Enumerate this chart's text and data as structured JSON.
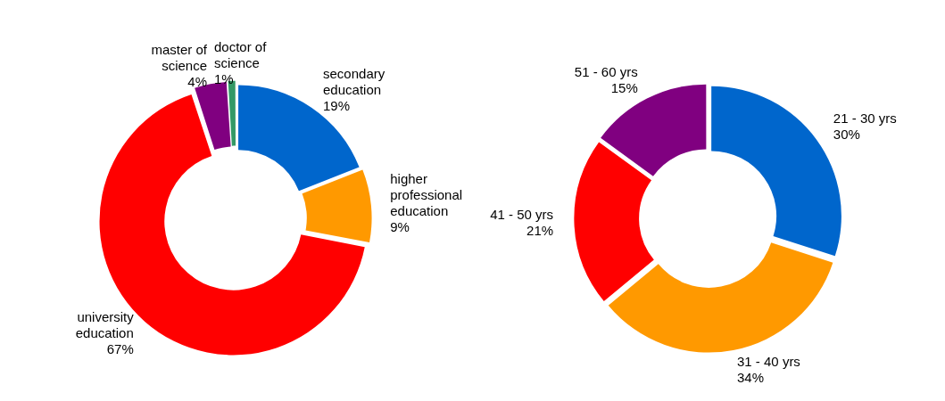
{
  "chart_data": [
    {
      "type": "donut",
      "categories": [
        "secondary education",
        "higher professional education",
        "university education",
        "master of science",
        "doctor of science"
      ],
      "values": [
        19,
        9,
        67,
        4,
        1
      ],
      "value_labels": [
        "19%",
        "9%",
        "67%",
        "4%",
        "1%"
      ],
      "colors": [
        "#0066cc",
        "#ff9900",
        "#ff0000",
        "#800080",
        "#339966"
      ]
    },
    {
      "type": "donut",
      "categories": [
        "21 - 30 yrs",
        "31 - 40 yrs",
        "41 - 50 yrs",
        "51 - 60 yrs"
      ],
      "values": [
        30,
        34,
        21,
        15
      ],
      "value_labels": [
        "30%",
        "34%",
        "21%",
        "15%"
      ],
      "colors": [
        "#0066cc",
        "#ff9900",
        "#ff0000",
        "#800080"
      ]
    }
  ]
}
